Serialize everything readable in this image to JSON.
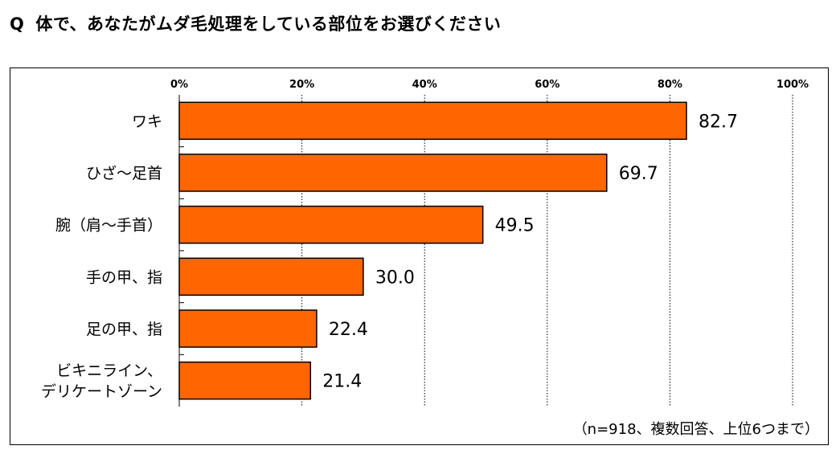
{
  "question": {
    "mark": "Q",
    "text": "体で、あなたがムダ毛処理をしている部位をお選びください"
  },
  "note": "（n=918、複数回答、上位6つまで）",
  "colors": {
    "bar_fill": "#ff6600",
    "bar_stroke": "#000000",
    "grid": "#000000"
  },
  "chart_data": {
    "type": "bar",
    "orientation": "horizontal",
    "categories": [
      [
        "ワキ"
      ],
      [
        "ひざ～足首"
      ],
      [
        "腕（肩～手首）"
      ],
      [
        "手の甲、指"
      ],
      [
        "足の甲、指"
      ],
      [
        "ビキニライン、",
        "デリケートゾーン"
      ]
    ],
    "values": [
      82.7,
      69.7,
      49.5,
      30.0,
      22.4,
      21.4
    ],
    "value_labels": [
      "82.7",
      "69.7",
      "49.5",
      "30.0",
      "22.4",
      "21.4"
    ],
    "xlim": [
      0,
      100
    ],
    "xticks": [
      "0%",
      "20%",
      "40%",
      "60%",
      "80%",
      "100%"
    ],
    "grid": "vertical dotted",
    "legend": "none"
  }
}
